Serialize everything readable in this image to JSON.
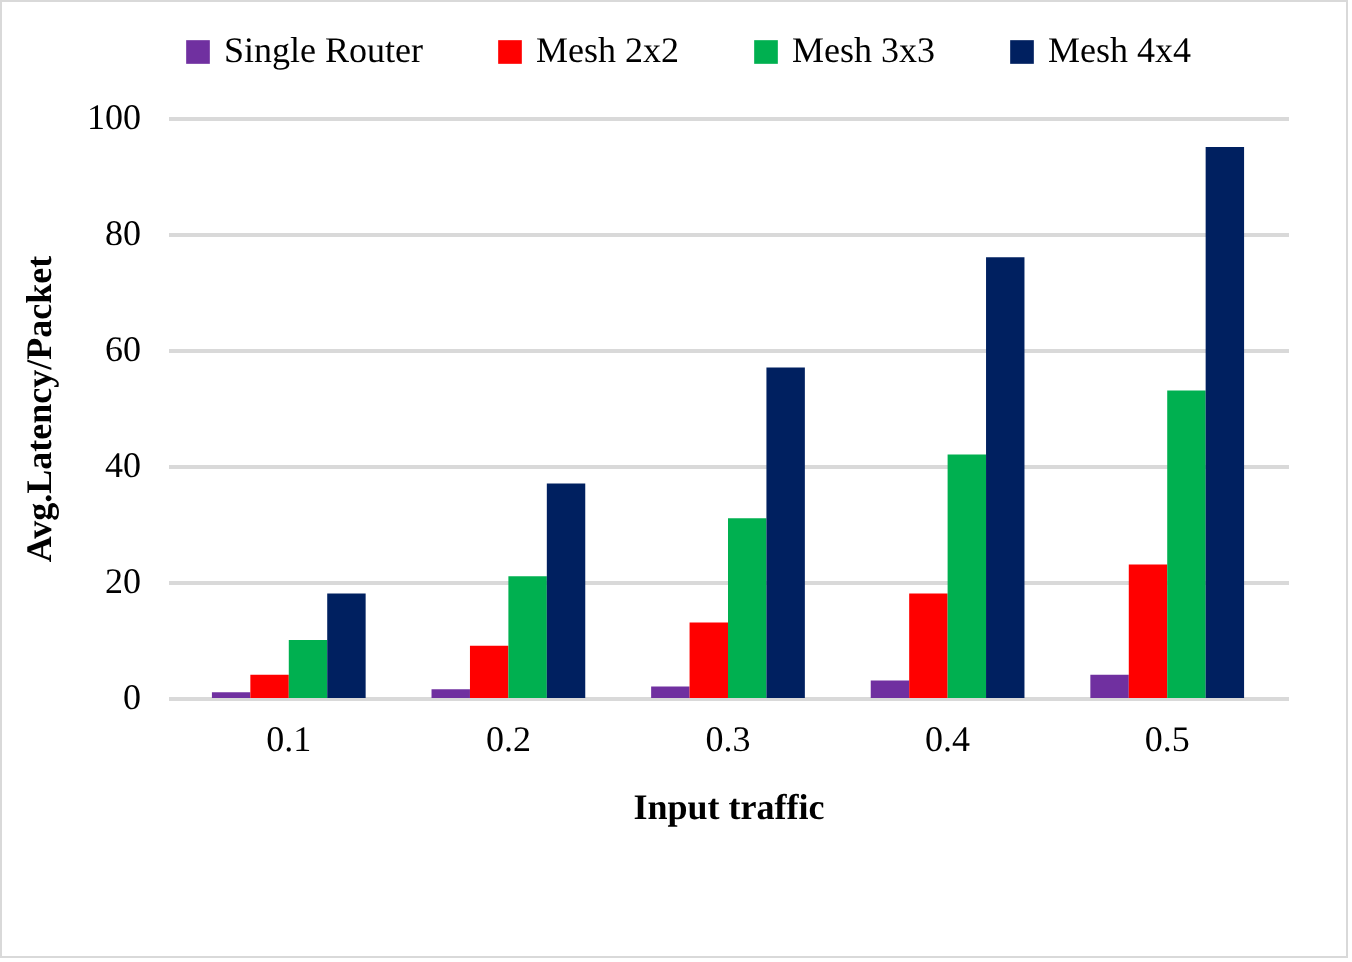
{
  "chart_data": {
    "type": "bar",
    "xlabel": "Input traffic",
    "ylabel": "Avg.Latency/Packet",
    "categories": [
      "0.1",
      "0.2",
      "0.3",
      "0.4",
      "0.5"
    ],
    "series": [
      {
        "name": "Single Router",
        "color": "#7030a0",
        "values": [
          1,
          1.5,
          2,
          3,
          4
        ]
      },
      {
        "name": "Mesh 2x2",
        "color": "#ff0000",
        "values": [
          4,
          9,
          13,
          18,
          23
        ]
      },
      {
        "name": "Mesh 3x3",
        "color": "#00b050",
        "values": [
          10,
          21,
          31,
          42,
          53
        ]
      },
      {
        "name": "Mesh 4x4",
        "color": "#002060",
        "values": [
          18,
          37,
          57,
          76,
          95
        ]
      }
    ],
    "ylim": [
      0,
      100
    ],
    "yticks": [
      0,
      20,
      40,
      60,
      80,
      100
    ],
    "grid": "y",
    "legend": "top"
  }
}
